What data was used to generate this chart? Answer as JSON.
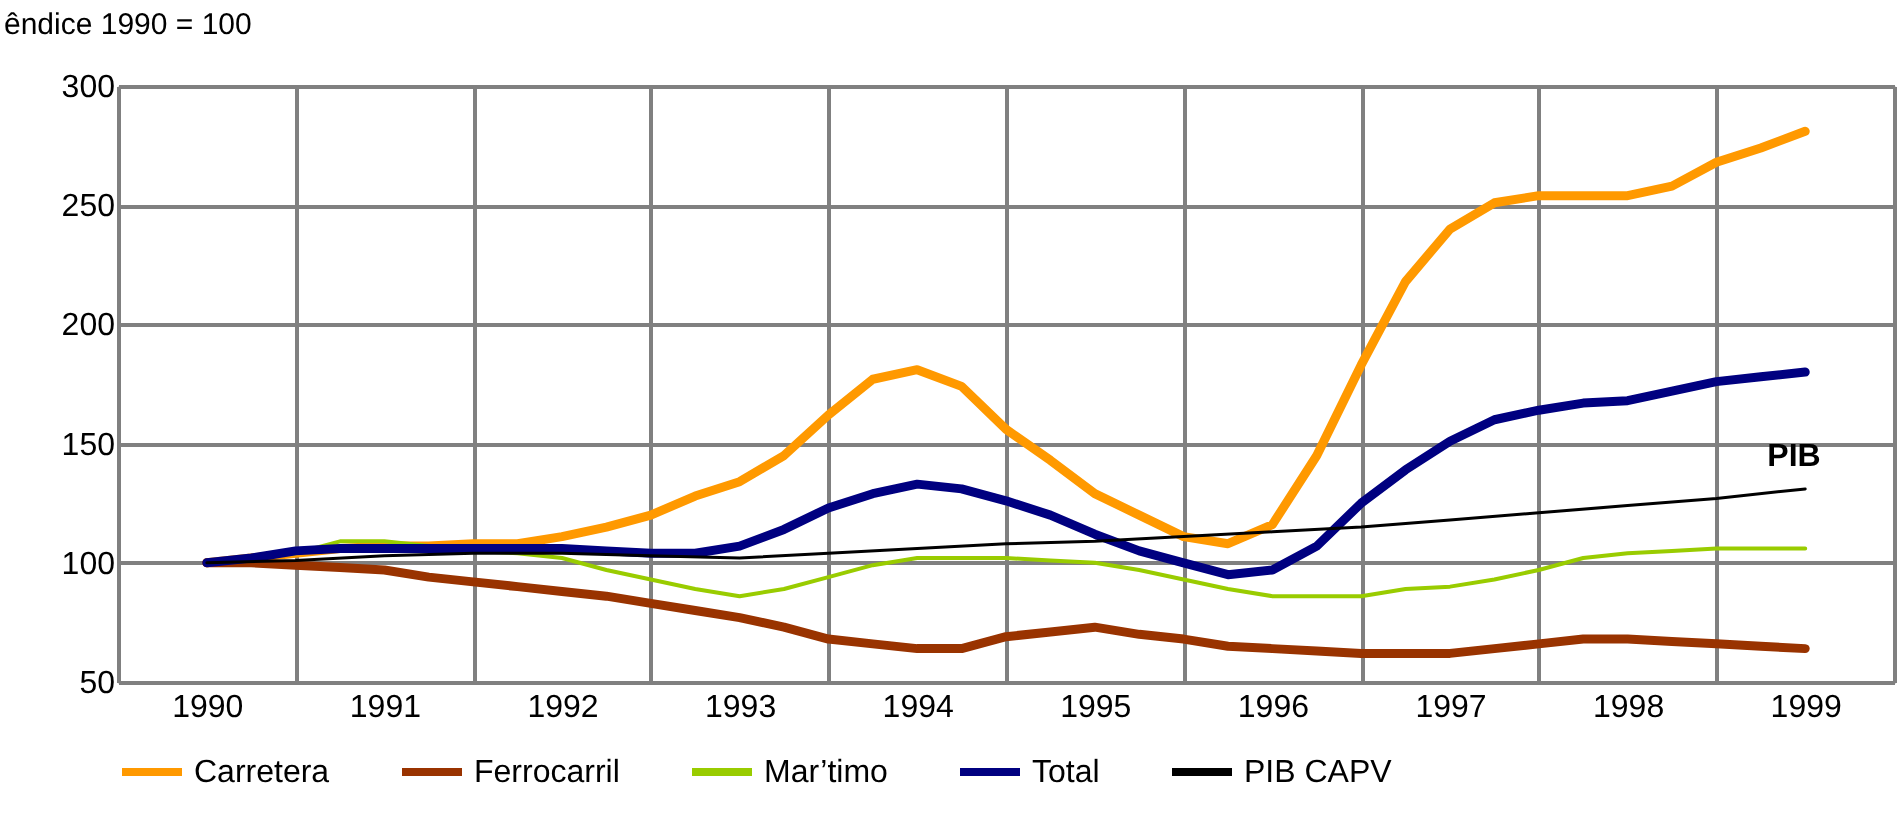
{
  "chart_data": {
    "type": "line",
    "ylabel": "êndice 1990 = 100",
    "x": [
      1990,
      1990.25,
      1990.5,
      1990.75,
      1991,
      1991.25,
      1991.5,
      1991.75,
      1992,
      1992.25,
      1992.5,
      1992.75,
      1993,
      1993.25,
      1993.5,
      1993.75,
      1994,
      1994.25,
      1994.5,
      1994.75,
      1995,
      1995.25,
      1995.5,
      1995.75,
      1996,
      1996.25,
      1996.5,
      1996.75,
      1997,
      1997.25,
      1997.5,
      1997.75,
      1998,
      1998.25,
      1998.5,
      1998.75,
      1999
    ],
    "series": [
      {
        "name": "Carretera",
        "color": "#ff9900",
        "values": [
          100,
          102,
          104,
          106,
          107,
          107,
          108,
          108,
          111,
          115,
          120,
          128,
          134,
          145,
          162,
          177,
          181,
          174,
          156,
          143,
          129,
          120,
          111,
          108,
          116,
          145,
          183,
          218,
          240,
          251,
          254,
          254,
          254,
          258,
          268,
          274,
          281
        ]
      },
      {
        "name": "Ferrocarril",
        "color": "#993300",
        "values": [
          100,
          100,
          99,
          98,
          97,
          94,
          92,
          90,
          88,
          86,
          83,
          80,
          77,
          73,
          68,
          66,
          64,
          64,
          69,
          71,
          73,
          70,
          68,
          65,
          64,
          63,
          62,
          62,
          62,
          64,
          66,
          68,
          68,
          67,
          66,
          65,
          64
        ]
      },
      {
        "name": "Mar’timo",
        "color": "#99cc00",
        "values": [
          100,
          102,
          104,
          109,
          109,
          107,
          105,
          104,
          102,
          97,
          93,
          89,
          86,
          89,
          94,
          99,
          102,
          102,
          102,
          101,
          100,
          97,
          93,
          89,
          86,
          86,
          86,
          89,
          90,
          93,
          97,
          102,
          104,
          105,
          106,
          106,
          106
        ]
      },
      {
        "name": "Total",
        "color": "#000080",
        "values": [
          100,
          102,
          105,
          106,
          106,
          106,
          106,
          106,
          106,
          105,
          104,
          104,
          107,
          114,
          123,
          129,
          133,
          131,
          126,
          120,
          112,
          105,
          100,
          95,
          97,
          107,
          125,
          139,
          151,
          160,
          164,
          167,
          168,
          172,
          176,
          178,
          180
        ]
      },
      {
        "name": "PIB CAPV",
        "color": "#000000",
        "x": [
          1990,
          1990.5,
          1991,
          1991.5,
          1992,
          1992.5,
          1993,
          1993.5,
          1994,
          1994.5,
          1995,
          1995.5,
          1996,
          1996.5,
          1997,
          1997.5,
          1998,
          1998.5,
          1999
        ],
        "values": [
          100,
          101,
          103,
          104,
          104,
          103,
          102,
          104,
          106,
          108,
          109,
          111,
          113,
          115,
          118,
          121,
          124,
          127,
          131
        ]
      }
    ],
    "annotations": [
      "PIB"
    ],
    "xlim": [
      1989.5,
      1999.5
    ],
    "xticks": [
      {
        "value": 1989.5,
        "label": null
      },
      1990,
      {
        "value": 1990.5,
        "label": null
      },
      1991,
      {
        "value": 1991.5,
        "label": null
      },
      1992,
      {
        "value": 1992.5,
        "label": null
      },
      1993,
      {
        "value": 1993.5,
        "label": null
      },
      1994,
      {
        "value": 1994.5,
        "label": null
      },
      1995,
      {
        "value": 1995.5,
        "label": null
      },
      1996,
      {
        "value": 1996.5,
        "label": null
      },
      1997,
      {
        "value": 1997.5,
        "label": null
      },
      1998,
      {
        "value": 1998.5,
        "label": null
      },
      1999,
      {
        "value": 1999.5,
        "label": null
      }
    ],
    "ylim": [
      50,
      300
    ],
    "yticks": [
      50,
      100,
      150,
      200,
      250,
      300
    ],
    "grid": true,
    "legend": "bottom",
    "marker": "none",
    "line_style": "solid"
  }
}
